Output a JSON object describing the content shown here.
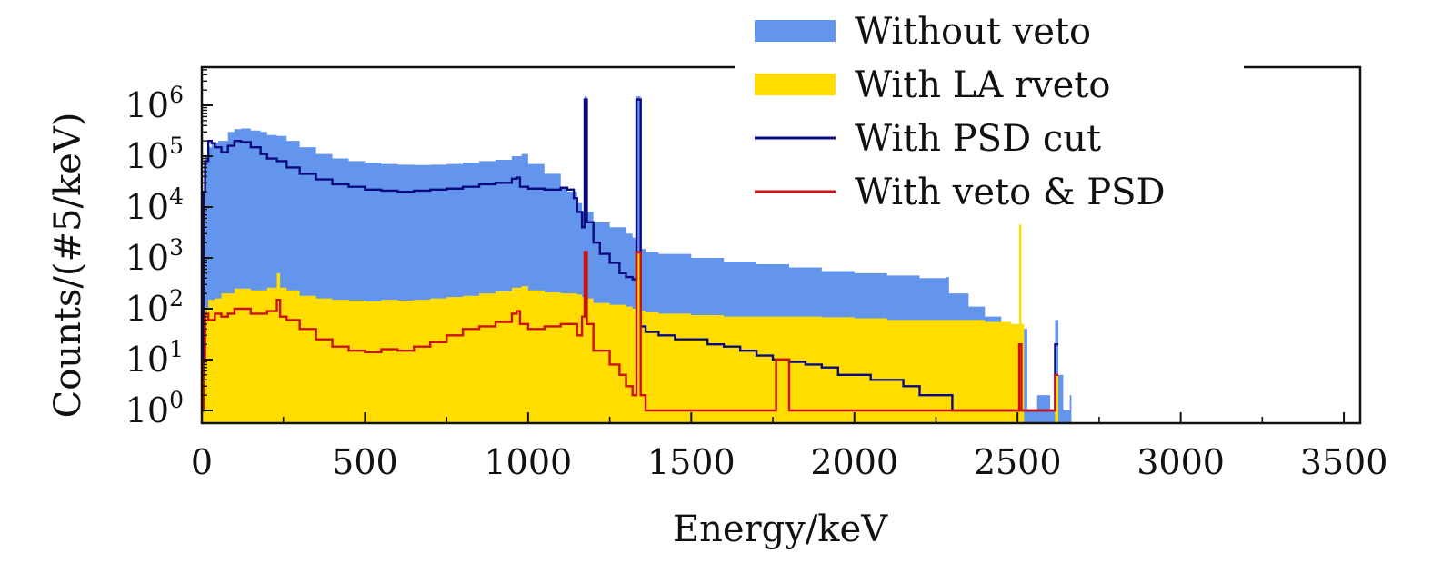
{
  "chart_data": {
    "type": "area",
    "xlabel": "Energy/keV",
    "ylabel": "Counts/(#5/keV)",
    "xlim": [
      0,
      3550
    ],
    "ylim_log10": [
      -0.25,
      6.75
    ],
    "y_scale": "log",
    "x_ticks": [
      "0",
      "500",
      "1000",
      "1500",
      "2000",
      "2500",
      "3000",
      "3500"
    ],
    "y_tick_base": "10",
    "y_ticks_exponents": [
      "0",
      "1",
      "2",
      "3",
      "4",
      "5",
      "6"
    ],
    "grid": false,
    "legend_position": "top-right",
    "series": [
      {
        "name": "Without veto",
        "style": "filled-step",
        "color": "#6495ED",
        "x": [
          0,
          10,
          20,
          30,
          50,
          80,
          100,
          120,
          150,
          180,
          200,
          230,
          260,
          300,
          350,
          400,
          450,
          500,
          550,
          600,
          650,
          700,
          750,
          800,
          850,
          900,
          950,
          980,
          1000,
          1050,
          1100,
          1120,
          1150,
          1165,
          1173,
          1180,
          1200,
          1250,
          1300,
          1320,
          1332,
          1345,
          1360,
          1400,
          1500,
          1600,
          1700,
          1800,
          1900,
          2000,
          2100,
          2200,
          2280,
          2290,
          2350,
          2400,
          2450,
          2500,
          2530,
          2560,
          2600,
          2615,
          2625,
          2640,
          2660,
          2665
        ],
        "values": [
          10,
          100000,
          150000,
          180000,
          200000,
          300000,
          340000,
          350000,
          320000,
          300000,
          260000,
          250000,
          200000,
          150000,
          110000,
          90000,
          80000,
          75000,
          70000,
          68000,
          67000,
          68000,
          70000,
          75000,
          80000,
          85000,
          100000,
          110000,
          70000,
          45000,
          25000,
          20000,
          12000,
          8000,
          1500000,
          8000,
          5000,
          4000,
          3000,
          2500,
          1500000,
          1500,
          1300,
          1200,
          1000,
          850,
          750,
          650,
          550,
          500,
          450,
          400,
          420,
          200,
          110,
          70,
          50,
          40,
          1,
          2,
          1,
          60,
          5,
          1,
          2,
          0
        ]
      },
      {
        "name": "With LA rveto",
        "style": "filled-step",
        "color": "#FFDD00",
        "x": [
          0,
          10,
          20,
          40,
          60,
          100,
          150,
          200,
          230,
          240,
          260,
          300,
          350,
          400,
          450,
          500,
          550,
          600,
          650,
          700,
          750,
          800,
          850,
          900,
          950,
          980,
          1000,
          1050,
          1100,
          1150,
          1165,
          1173,
          1180,
          1200,
          1250,
          1300,
          1320,
          1332,
          1345,
          1360,
          1400,
          1500,
          1600,
          1700,
          1800,
          1900,
          2000,
          2100,
          2200,
          2300,
          2400,
          2480,
          2505,
          2512,
          2520,
          2600,
          2615,
          2625,
          2640
        ],
        "values": [
          5,
          100,
          150,
          160,
          200,
          250,
          230,
          260,
          500,
          260,
          230,
          180,
          160,
          150,
          145,
          140,
          150,
          145,
          150,
          160,
          170,
          180,
          200,
          220,
          260,
          280,
          230,
          210,
          200,
          190,
          170,
          1300,
          160,
          130,
          120,
          110,
          100,
          1200,
          90,
          85,
          80,
          75,
          70,
          70,
          70,
          68,
          65,
          60,
          60,
          60,
          55,
          50,
          4500,
          50,
          0,
          0,
          5,
          0,
          0
        ]
      },
      {
        "name": "With PSD cut",
        "style": "line-step",
        "color": "#0A0A80",
        "x": [
          0,
          5,
          10,
          20,
          30,
          40,
          60,
          80,
          100,
          120,
          150,
          180,
          200,
          230,
          260,
          300,
          350,
          400,
          450,
          500,
          550,
          600,
          650,
          700,
          750,
          800,
          850,
          900,
          950,
          965,
          975,
          1000,
          1050,
          1100,
          1120,
          1140,
          1150,
          1165,
          1173,
          1180,
          1200,
          1220,
          1250,
          1280,
          1300,
          1320,
          1332,
          1345,
          1360,
          1400,
          1450,
          1500,
          1550,
          1600,
          1650,
          1700,
          1750,
          1800,
          1850,
          1900,
          1950,
          2000,
          2050,
          2100,
          2150,
          2200,
          2250,
          2300,
          2350,
          2400,
          2450,
          2480,
          2500,
          2550,
          2600,
          2615,
          2625
        ],
        "values": [
          1,
          20000,
          80000,
          200000,
          180000,
          150000,
          120000,
          160000,
          200000,
          190000,
          150000,
          110000,
          90000,
          80000,
          60000,
          45000,
          35000,
          28000,
          25000,
          22000,
          21000,
          20000,
          21000,
          22000,
          23000,
          25000,
          28000,
          30000,
          36000,
          38000,
          25000,
          23000,
          22000,
          24000,
          22000,
          15000,
          8000,
          4000,
          1300000,
          5000,
          2000,
          1200,
          800,
          500,
          420,
          380,
          1300000,
          45,
          35,
          30,
          25,
          25,
          20,
          18,
          15,
          12,
          10,
          9,
          8,
          7,
          5,
          5,
          4,
          4,
          3,
          2,
          2,
          1,
          1,
          1,
          1,
          1,
          1,
          1,
          1,
          20,
          1
        ]
      },
      {
        "name": "With veto & PSD",
        "style": "line-step",
        "color": "#CC1111",
        "x": [
          0,
          5,
          10,
          20,
          40,
          60,
          80,
          100,
          150,
          200,
          230,
          240,
          260,
          300,
          350,
          400,
          450,
          500,
          550,
          600,
          650,
          700,
          750,
          800,
          850,
          900,
          950,
          965,
          975,
          1000,
          1050,
          1100,
          1150,
          1165,
          1173,
          1180,
          1200,
          1250,
          1280,
          1300,
          1320,
          1332,
          1345,
          1360,
          1400,
          1500,
          1600,
          1700,
          1750,
          1760,
          1800,
          1900,
          2000,
          2100,
          2200,
          2300,
          2400,
          2500,
          2505,
          2512,
          2520,
          2600,
          2615,
          2625
        ],
        "values": [
          1,
          10,
          80,
          60,
          80,
          70,
          80,
          100,
          80,
          90,
          150,
          70,
          60,
          40,
          25,
          18,
          15,
          14,
          16,
          15,
          18,
          22,
          30,
          40,
          45,
          55,
          80,
          90,
          50,
          40,
          45,
          50,
          30,
          70,
          1300,
          50,
          15,
          8,
          5,
          3,
          2,
          1300,
          2,
          1,
          1,
          1,
          1,
          1,
          1,
          10,
          1,
          1,
          1,
          1,
          1,
          1,
          1,
          1,
          20,
          1,
          1,
          1,
          5,
          1
        ]
      }
    ]
  }
}
